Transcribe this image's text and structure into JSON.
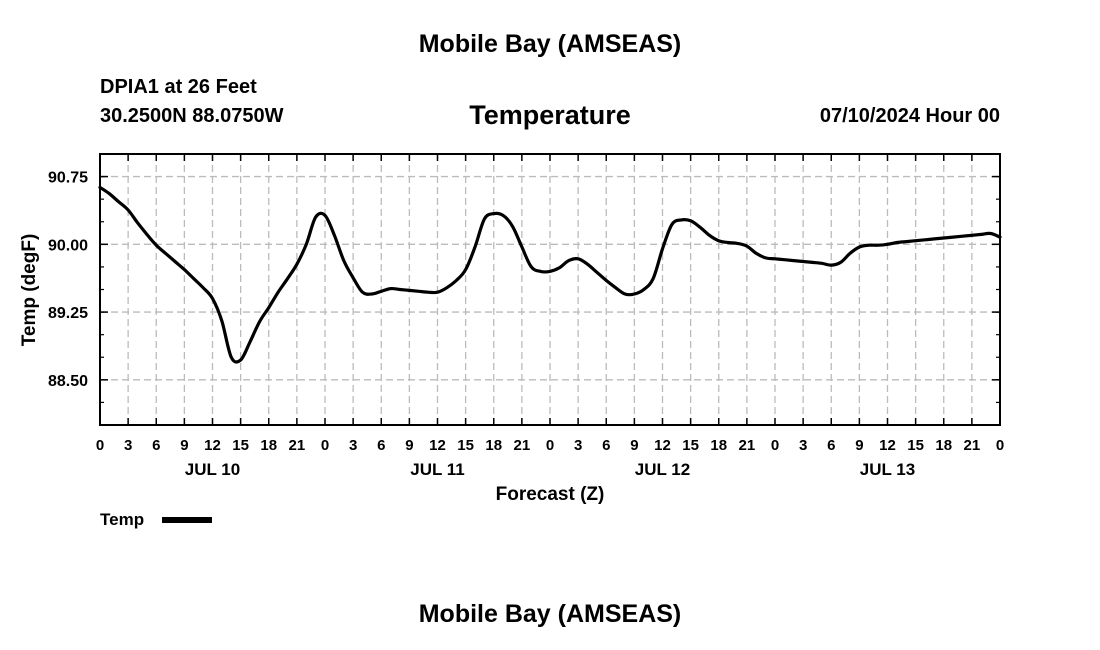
{
  "header": {
    "title": "Mobile Bay (AMSEAS)",
    "station": "DPIA1 at 26 Feet",
    "coords": "30.2500N  88.0750W",
    "chart_title": "Temperature",
    "run_time": "07/10/2024 Hour 00",
    "bottom_title": "Mobile Bay (AMSEAS)"
  },
  "legend": {
    "label": "Temp"
  },
  "chart_data": {
    "type": "line",
    "title": "Temperature",
    "xlabel": "Forecast (Z)",
    "ylabel": "Temp (degF)",
    "ylim": [
      88.0,
      91.0
    ],
    "xlim": [
      0,
      96
    ],
    "yticks": [
      88.5,
      89.25,
      90.0,
      90.75
    ],
    "ytick_labels": [
      "88.50",
      "89.25",
      "90.00",
      "90.75"
    ],
    "xtick_labels": [
      "0",
      "3",
      "6",
      "9",
      "12",
      "15",
      "18",
      "21",
      "0",
      "3",
      "6",
      "9",
      "12",
      "15",
      "18",
      "21",
      "0",
      "3",
      "6",
      "9",
      "12",
      "15",
      "18",
      "21",
      "0",
      "3",
      "6",
      "9",
      "12",
      "15",
      "18",
      "21",
      "0"
    ],
    "day_labels": [
      {
        "hour": 12,
        "label": "JUL 10"
      },
      {
        "hour": 36,
        "label": "JUL 11"
      },
      {
        "hour": 60,
        "label": "JUL 12"
      },
      {
        "hour": 84,
        "label": "JUL 13"
      }
    ],
    "grid": true,
    "series": [
      {
        "name": "Temp",
        "x": [
          0,
          1,
          2,
          3,
          4,
          5,
          6,
          7,
          8,
          9,
          10,
          11,
          12,
          13,
          14,
          15,
          16,
          17,
          18,
          19,
          20,
          21,
          22,
          23,
          24,
          25,
          26,
          27,
          28,
          29,
          30,
          31,
          32,
          33,
          34,
          35,
          36,
          37,
          38,
          39,
          40,
          41,
          42,
          43,
          44,
          45,
          46,
          47,
          48,
          49,
          50,
          51,
          52,
          53,
          54,
          55,
          56,
          57,
          58,
          59,
          60,
          61,
          62,
          63,
          64,
          65,
          66,
          67,
          68,
          69,
          70,
          71,
          72,
          73,
          74,
          75,
          76,
          77,
          78,
          79,
          80,
          81,
          82,
          83,
          84,
          85,
          86,
          87,
          88,
          89,
          90,
          91,
          92,
          93,
          94,
          95,
          96
        ],
        "values": [
          90.63,
          90.56,
          90.47,
          90.38,
          90.24,
          90.11,
          89.99,
          89.9,
          89.81,
          89.72,
          89.62,
          89.52,
          89.4,
          89.15,
          88.75,
          88.72,
          88.92,
          89.14,
          89.3,
          89.47,
          89.62,
          89.78,
          90.0,
          90.3,
          90.32,
          90.1,
          89.82,
          89.63,
          89.47,
          89.45,
          89.48,
          89.51,
          89.5,
          89.49,
          89.48,
          89.47,
          89.47,
          89.52,
          89.6,
          89.72,
          89.97,
          90.28,
          90.34,
          90.32,
          90.2,
          89.97,
          89.75,
          89.7,
          89.7,
          89.74,
          89.82,
          89.84,
          89.78,
          89.69,
          89.6,
          89.52,
          89.45,
          89.45,
          89.5,
          89.62,
          89.95,
          90.22,
          90.27,
          90.26,
          90.19,
          90.1,
          90.04,
          90.02,
          90.01,
          89.98,
          89.9,
          89.85,
          89.84,
          89.83,
          89.82,
          89.81,
          89.8,
          89.79,
          89.77,
          89.8,
          89.9,
          89.97,
          89.99,
          89.99,
          90.0,
          90.02,
          90.03,
          90.04,
          90.05,
          90.06,
          90.07,
          90.08,
          90.09,
          90.1,
          90.11,
          90.12,
          90.08
        ]
      }
    ]
  }
}
